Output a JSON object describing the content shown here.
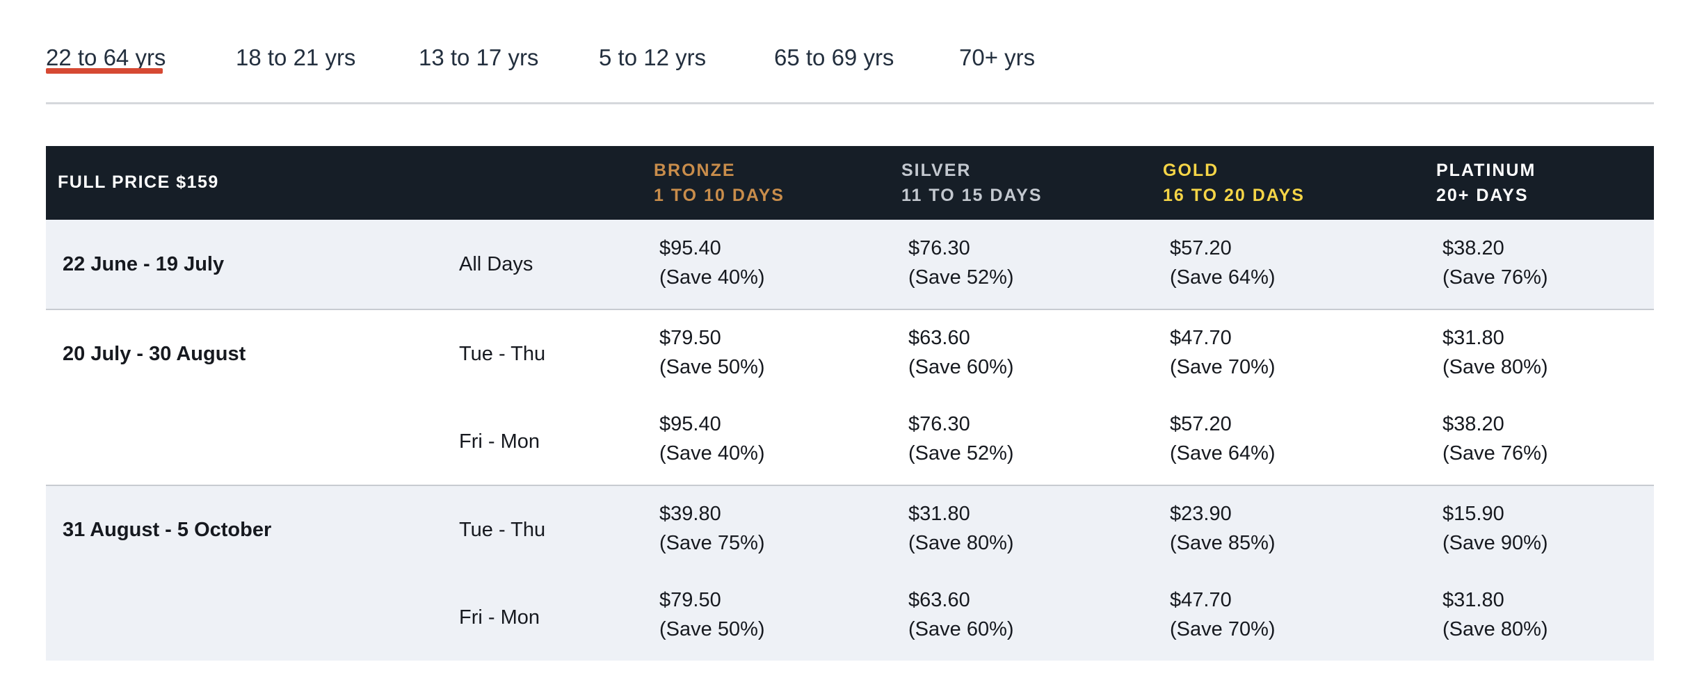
{
  "tabs": [
    {
      "label": "22 to 64 yrs",
      "active": true
    },
    {
      "label": "18 to 21 yrs",
      "active": false
    },
    {
      "label": "13 to 17 yrs",
      "active": false
    },
    {
      "label": "5 to 12 yrs",
      "active": false
    },
    {
      "label": "65 to 69 yrs",
      "active": false
    },
    {
      "label": "70+ yrs",
      "active": false
    }
  ],
  "colors": {
    "active_underline": "#d64933",
    "header_bg": "#161e27",
    "bronze": "#c98d4b",
    "silver": "#c3c8cf",
    "gold": "#f5d547",
    "platinum": "#ffffff",
    "alt_row_bg": "#eef1f6"
  },
  "table": {
    "full_price_label": "FULL PRICE $159",
    "tiers": [
      {
        "name": "BRONZE",
        "days": "1 TO 10 DAYS"
      },
      {
        "name": "SILVER",
        "days": "11 TO 15 DAYS"
      },
      {
        "name": "GOLD",
        "days": "16 TO 20 DAYS"
      },
      {
        "name": "PLATINUM",
        "days": "20+ DAYS"
      }
    ],
    "periods": [
      {
        "date": "22 June - 19 July",
        "rows": [
          {
            "days": "All Days",
            "prices": [
              {
                "price": "$95.40",
                "save": "(Save 40%)"
              },
              {
                "price": "$76.30",
                "save": "(Save 52%)"
              },
              {
                "price": "$57.20",
                "save": "(Save 64%)"
              },
              {
                "price": "$38.20",
                "save": "(Save 76%)"
              }
            ]
          }
        ]
      },
      {
        "date": "20 July - 30 August",
        "rows": [
          {
            "days": "Tue - Thu",
            "prices": [
              {
                "price": "$79.50",
                "save": "(Save 50%)"
              },
              {
                "price": "$63.60",
                "save": "(Save 60%)"
              },
              {
                "price": "$47.70",
                "save": "(Save 70%)"
              },
              {
                "price": "$31.80",
                "save": "(Save 80%)"
              }
            ]
          },
          {
            "days": "Fri - Mon",
            "prices": [
              {
                "price": "$95.40",
                "save": "(Save 40%)"
              },
              {
                "price": "$76.30",
                "save": "(Save 52%)"
              },
              {
                "price": "$57.20",
                "save": "(Save 64%)"
              },
              {
                "price": "$38.20",
                "save": "(Save 76%)"
              }
            ]
          }
        ]
      },
      {
        "date": "31 August - 5 October",
        "rows": [
          {
            "days": "Tue - Thu",
            "prices": [
              {
                "price": "$39.80",
                "save": "(Save 75%)"
              },
              {
                "price": "$31.80",
                "save": "(Save 80%)"
              },
              {
                "price": "$23.90",
                "save": "(Save 85%)"
              },
              {
                "price": "$15.90",
                "save": "(Save 90%)"
              }
            ]
          },
          {
            "days": "Fri - Mon",
            "prices": [
              {
                "price": "$79.50",
                "save": "(Save 50%)"
              },
              {
                "price": "$63.60",
                "save": "(Save 60%)"
              },
              {
                "price": "$47.70",
                "save": "(Save 70%)"
              },
              {
                "price": "$31.80",
                "save": "(Save 80%)"
              }
            ]
          }
        ]
      }
    ]
  }
}
